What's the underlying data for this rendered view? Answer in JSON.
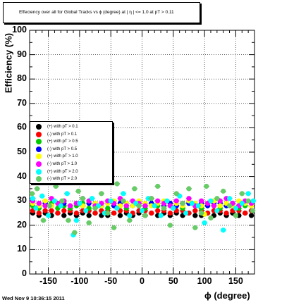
{
  "title": "Effeciency over all for Global Tracks vs ϕ (degree) at |  η | <= 1.0 at pT > 0.11",
  "timestamp": "Wed Nov  9 10:36:15 2011",
  "chart_data": {
    "type": "scatter",
    "xlabel": "ϕ (degree)",
    "ylabel": "Efficiency (%)",
    "xlim": [
      -180,
      180
    ],
    "ylim": [
      0,
      100
    ],
    "x_ticks": [
      -150,
      -100,
      -50,
      0,
      50,
      100,
      150
    ],
    "y_ticks": [
      0,
      10,
      20,
      30,
      40,
      50,
      60,
      70,
      80,
      90,
      100
    ],
    "grid": true,
    "legend_position": "left-middle",
    "series": [
      {
        "name": "(+) with pT > 0.1",
        "color": "#000000",
        "x": [
          -175,
          -165,
          -155,
          -145,
          -135,
          -125,
          -115,
          -105,
          -95,
          -85,
          -75,
          -65,
          -55,
          -45,
          -35,
          -25,
          -15,
          -5,
          5,
          15,
          25,
          35,
          45,
          55,
          65,
          75,
          85,
          95,
          105,
          115,
          125,
          135,
          145,
          155,
          165,
          175
        ],
        "y": [
          25,
          24,
          25,
          24,
          25,
          24,
          25,
          24,
          25,
          24,
          25,
          24,
          24,
          25,
          24,
          25,
          24,
          25,
          24,
          25,
          24,
          25,
          24,
          25,
          24,
          25,
          24,
          24,
          25,
          24,
          25,
          24,
          25,
          24,
          25,
          24
        ]
      },
      {
        "name": "(-) with pT > 0.1",
        "color": "#ff0000",
        "x": [
          -175,
          -165,
          -155,
          -145,
          -135,
          -125,
          -115,
          -105,
          -95,
          -85,
          -75,
          -65,
          -55,
          -45,
          -35,
          -25,
          -15,
          -5,
          5,
          15,
          25,
          35,
          45,
          55,
          65,
          75,
          85,
          95,
          105,
          115,
          125,
          135,
          145,
          155,
          165,
          175
        ],
        "y": [
          26,
          25,
          26,
          26,
          25,
          26,
          26,
          25,
          26,
          26,
          25,
          26,
          26,
          25,
          26,
          26,
          25,
          26,
          26,
          25,
          26,
          26,
          25,
          26,
          26,
          25,
          26,
          26,
          25,
          26,
          26,
          25,
          26,
          26,
          25,
          26
        ]
      },
      {
        "name": "(+) with pT > 0.5",
        "color": "#00cc00",
        "x": [
          -175,
          -165,
          -155,
          -145,
          -135,
          -125,
          -115,
          -105,
          -95,
          -85,
          -75,
          -65,
          -55,
          -45,
          -35,
          -25,
          -15,
          -5,
          5,
          15,
          25,
          35,
          45,
          55,
          65,
          75,
          85,
          95,
          105,
          115,
          125,
          135,
          145,
          155,
          165,
          175
        ],
        "y": [
          28,
          27,
          28,
          29,
          27,
          28,
          27,
          28,
          29,
          27,
          28,
          28,
          27,
          29,
          28,
          27,
          28,
          28,
          27,
          29,
          28,
          27,
          28,
          28,
          27,
          29,
          28,
          27,
          28,
          28,
          27,
          28,
          29,
          27,
          28,
          28
        ]
      },
      {
        "name": "(-) with pT > 0.5",
        "color": "#0000ff",
        "x": [
          -175,
          -165,
          -155,
          -145,
          -135,
          -125,
          -115,
          -105,
          -95,
          -85,
          -75,
          -65,
          -55,
          -45,
          -35,
          -25,
          -15,
          -5,
          5,
          15,
          25,
          35,
          45,
          55,
          65,
          75,
          85,
          95,
          105,
          115,
          125,
          135,
          145,
          155,
          165,
          175
        ],
        "y": [
          29,
          28,
          29,
          28,
          29,
          29,
          28,
          29,
          28,
          29,
          29,
          28,
          29,
          28,
          29,
          29,
          28,
          29,
          28,
          29,
          29,
          28,
          29,
          28,
          29,
          29,
          28,
          29,
          28,
          29,
          29,
          28,
          29,
          28,
          29,
          29
        ]
      },
      {
        "name": "(+) with pT > 1.0",
        "color": "#ffff00",
        "x": [
          -175,
          -165,
          -155,
          -145,
          -135,
          -125,
          -115,
          -105,
          -95,
          -85,
          -75,
          -65,
          -55,
          -45,
          -35,
          -25,
          -15,
          -5,
          5,
          15,
          25,
          35,
          45,
          55,
          65,
          75,
          85,
          95,
          100,
          105,
          115,
          125,
          135,
          145,
          155,
          165,
          175
        ],
        "y": [
          29,
          28,
          30,
          28,
          29,
          30,
          28,
          29,
          28,
          30,
          29,
          28,
          29,
          30,
          28,
          29,
          28,
          30,
          29,
          28,
          29,
          30,
          28,
          29,
          28,
          30,
          29,
          28,
          24.5,
          29,
          30,
          28,
          29,
          28,
          30,
          29,
          28
        ]
      },
      {
        "name": "(-) with pT > 1.0",
        "color": "#ff00ff",
        "x": [
          -175,
          -165,
          -155,
          -145,
          -135,
          -125,
          -115,
          -105,
          -95,
          -85,
          -75,
          -65,
          -55,
          -45,
          -35,
          -25,
          -15,
          -5,
          5,
          15,
          25,
          35,
          45,
          55,
          65,
          75,
          85,
          95,
          105,
          115,
          125,
          135,
          145,
          155,
          165,
          175
        ],
        "y": [
          30,
          29,
          28,
          31,
          29,
          30,
          28,
          29,
          31,
          30,
          28,
          29,
          30,
          29,
          31,
          28,
          30,
          29,
          28,
          31,
          30,
          29,
          28,
          30,
          29,
          31,
          28,
          30,
          29,
          28,
          30,
          31,
          29,
          28,
          30,
          29
        ]
      },
      {
        "name": "(+) with pT > 2.0",
        "color": "#00ffff",
        "x": [
          -175,
          -170,
          -160,
          -150,
          -140,
          -130,
          -120,
          -110,
          -105,
          -100,
          -90,
          -80,
          -70,
          -60,
          -50,
          -40,
          -30,
          -20,
          -10,
          0,
          10,
          20,
          30,
          40,
          50,
          60,
          70,
          80,
          90,
          100,
          110,
          120,
          130,
          140,
          150,
          160,
          170,
          178
        ],
        "y": [
          31,
          27,
          32,
          24,
          30,
          28,
          33,
          16,
          22,
          29,
          26,
          31,
          28,
          25,
          30,
          27,
          33,
          24,
          29,
          26,
          31,
          28,
          24,
          30,
          27,
          32,
          25,
          29,
          28,
          21,
          30,
          26,
          18,
          31,
          27,
          29,
          33,
          30
        ]
      },
      {
        "name": "(-) with pT > 2.0",
        "color": "#66cc66",
        "x": [
          -176,
          -168,
          -158,
          -148,
          -138,
          -128,
          -118,
          -108,
          -102,
          -95,
          -85,
          -75,
          -65,
          -55,
          -45,
          -40,
          -30,
          -20,
          -12,
          -5,
          5,
          15,
          25,
          35,
          45,
          55,
          65,
          75,
          85,
          95,
          103,
          110,
          120,
          130,
          140,
          150,
          160,
          170,
          177
        ],
        "y": [
          33,
          35,
          22,
          28,
          36,
          30,
          22,
          17,
          34,
          31,
          21,
          27,
          33,
          25,
          19,
          37,
          30,
          22,
          35,
          28,
          24,
          31,
          36,
          27,
          20,
          33,
          29,
          35,
          19,
          25,
          36,
          23,
          31,
          34,
          28,
          24,
          33,
          30,
          26
        ]
      }
    ]
  }
}
